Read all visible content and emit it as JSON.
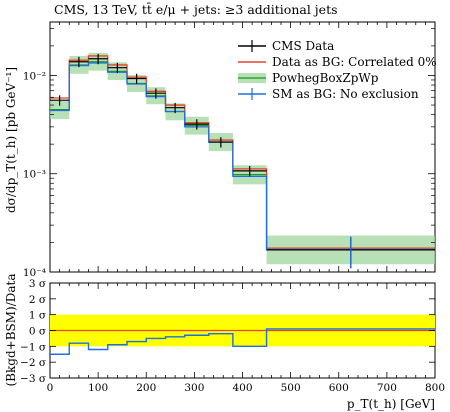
{
  "title": "CMS, 13 TeV, tt̄ e/μ + jets: ≥3 additional jets",
  "legend": {
    "entries": [
      {
        "label": "CMS Data",
        "color": "#000000"
      },
      {
        "label": "Data as BG: Correlated 0%",
        "color": "#e8412a"
      },
      {
        "label": "PowhegBoxZpWp",
        "color": "#1a9a1a"
      },
      {
        "label": "SM as BG: No exclusion",
        "color": "#1f6fe0"
      }
    ]
  },
  "main_ylabel": "dσ/dp_T(t_h) [pb GeV⁻¹]",
  "ratio_ylabel": "(Bkgd+BSM)/Data",
  "xlabel": "p_T(t_h) [GeV]",
  "x_ticks": [
    "0",
    "100",
    "200",
    "300",
    "400",
    "500",
    "600",
    "700",
    "800"
  ],
  "y_ticks": [
    "10⁻⁴",
    "10⁻³",
    "10⁻²"
  ],
  "ratio_ticks": [
    "3 σ",
    "2 σ",
    "1 σ",
    "0 σ",
    "−1 σ",
    "−2 σ",
    "−3 σ"
  ],
  "chart_data": {
    "type": "histogram",
    "x_bins": [
      0,
      40,
      80,
      120,
      160,
      200,
      240,
      280,
      330,
      380,
      450,
      800
    ],
    "xlim": [
      0,
      800
    ],
    "ylim": [
      0.0001,
      0.035
    ],
    "y_scale": "log",
    "series": [
      {
        "name": "CMS Data",
        "style": "points",
        "values": [
          0.0056,
          0.0138,
          0.0148,
          0.012,
          0.0093,
          0.0066,
          0.0047,
          0.0032,
          0.0021,
          0.00107,
          0.000168
        ]
      },
      {
        "name": "Data as BG: Correlated 0%",
        "style": "step",
        "values": [
          0.0059,
          0.0143,
          0.0158,
          0.0128,
          0.0096,
          0.0069,
          0.005,
          0.0033,
          0.0022,
          0.00112,
          0.000175
        ]
      },
      {
        "name": "PowhegBoxZpWp",
        "style": "band",
        "values": [
          0.0045,
          0.0128,
          0.0138,
          0.011,
          0.0083,
          0.0062,
          0.0043,
          0.0031,
          0.0021,
          0.00098,
          0.000168
        ],
        "band_lo": [
          0.0036,
          0.0104,
          0.0112,
          0.009,
          0.0068,
          0.0051,
          0.0035,
          0.0025,
          0.0017,
          0.00078,
          0.00012
        ],
        "band_hi": [
          0.0056,
          0.0158,
          0.017,
          0.0136,
          0.0101,
          0.0076,
          0.0052,
          0.0038,
          0.0026,
          0.00122,
          0.000235
        ]
      },
      {
        "name": "SM as BG: No exclusion",
        "style": "step",
        "values": [
          0.0044,
          0.0126,
          0.0134,
          0.0108,
          0.0082,
          0.0061,
          0.0043,
          0.003,
          0.0021,
          0.00094,
          0.00017
        ]
      }
    ],
    "ratio": {
      "ylim": [
        -3,
        3
      ],
      "yellow_band": [
        -1,
        1
      ],
      "red_line": 0,
      "blue_values": [
        -1.5,
        -0.8,
        -1.2,
        -0.9,
        -0.7,
        -0.5,
        -0.4,
        -0.3,
        -0.2,
        -1.0,
        0.1
      ]
    }
  }
}
